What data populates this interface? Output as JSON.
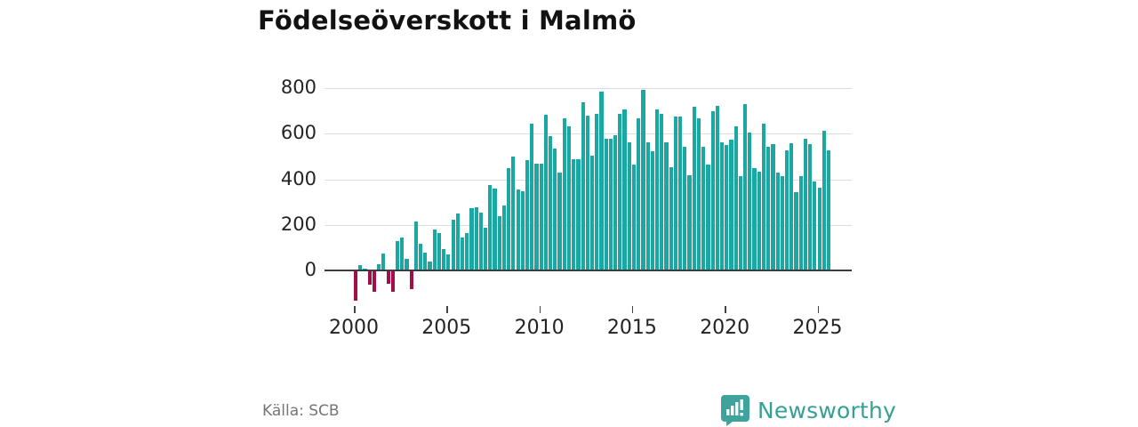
{
  "title": "Födelseöverskott i Malmö",
  "source": "Källa: SCB",
  "brand": {
    "name": "Newsworthy",
    "logo_icon": "bar-chart-map-pin-icon",
    "color": "#35a096"
  },
  "colors": {
    "positive_bar": "#1ba8a2",
    "negative_bar": "#a50d49",
    "gridline": "#dcdcdc",
    "zero_axis": "#3c3c3c",
    "text": "#232323",
    "muted_text": "#757575",
    "background": "#ffffff"
  },
  "chart_data": {
    "type": "bar",
    "title": "Födelseöverskott i Malmö",
    "unit": "persons per quarter",
    "start_period": "2000-Q1",
    "end_period": "2025-Q3",
    "periods_per_year": 4,
    "values": [
      -130,
      20,
      5,
      -60,
      -90,
      25,
      70,
      -55,
      -90,
      125,
      140,
      45,
      -80,
      210,
      115,
      75,
      35,
      175,
      160,
      90,
      65,
      220,
      245,
      140,
      160,
      270,
      275,
      250,
      185,
      370,
      355,
      235,
      280,
      445,
      495,
      350,
      345,
      480,
      640,
      465,
      465,
      680,
      585,
      530,
      425,
      665,
      630,
      485,
      485,
      735,
      675,
      500,
      685,
      780,
      575,
      575,
      590,
      685,
      705,
      560,
      460,
      665,
      790,
      560,
      520,
      705,
      685,
      560,
      450,
      670,
      670,
      540,
      415,
      715,
      665,
      540,
      460,
      695,
      720,
      560,
      545,
      570,
      630,
      410,
      725,
      600,
      445,
      430,
      640,
      540,
      550,
      425,
      410,
      525,
      555,
      340,
      410,
      575,
      550,
      385,
      360,
      610,
      525
    ],
    "x_tick_years": [
      2000,
      2005,
      2010,
      2015,
      2020,
      2025
    ],
    "y_ticks": [
      0,
      200,
      400,
      600,
      800
    ],
    "ylim": [
      -160,
      830
    ],
    "grid": "horizontal",
    "legend": "none",
    "bar_color_rule": "teal when value >= 0, dark crimson when value < 0"
  }
}
